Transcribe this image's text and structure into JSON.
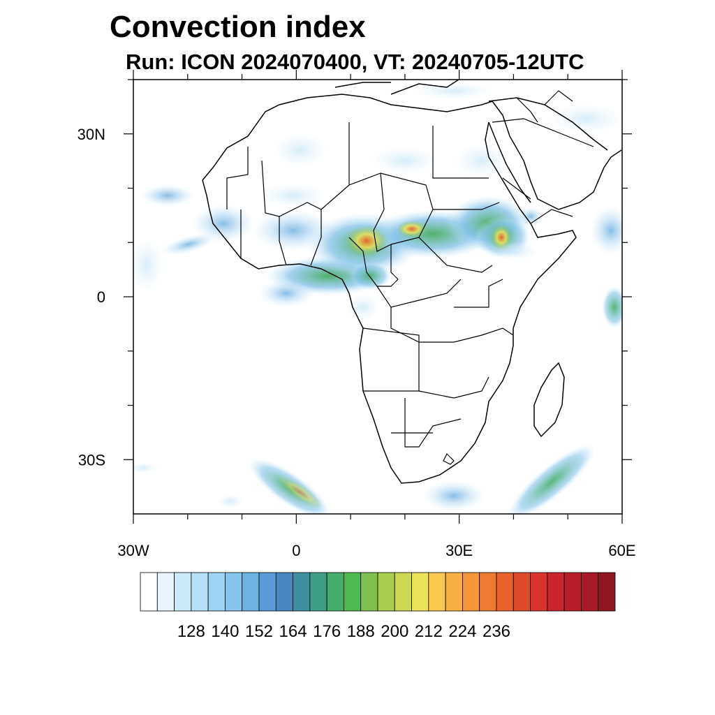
{
  "header": {
    "title": "Convection index",
    "subtitle": "Run: ICON 2024070400,  VT: 20240705-12UTC"
  },
  "map": {
    "lon_range": [
      -30,
      60
    ],
    "lat_range": [
      -40,
      40
    ],
    "lat_ticks": [
      {
        "value": 30,
        "label": "30N"
      },
      {
        "value": 0,
        "label": "0"
      },
      {
        "value": -30,
        "label": "30S"
      }
    ],
    "lon_ticks": [
      {
        "value": -30,
        "label": "30W"
      },
      {
        "value": 0,
        "label": "0"
      },
      {
        "value": 30,
        "label": "30E"
      },
      {
        "value": 60,
        "label": "60E"
      }
    ]
  },
  "colorbar": {
    "colors": [
      "#ffffff",
      "#e8f4fc",
      "#cde9f7",
      "#b6e0f5",
      "#9dd4f3",
      "#86c5ec",
      "#6eb1e3",
      "#5b9bd5",
      "#4a86c0",
      "#3e8fa0",
      "#3f9e84",
      "#43ad6a",
      "#4fb850",
      "#7fc04e",
      "#a7cc4e",
      "#cfd855",
      "#ede35a",
      "#f8ca52",
      "#f6b044",
      "#f3963a",
      "#ee7a32",
      "#e8612d",
      "#de4a2c",
      "#d6342c",
      "#c9252c",
      "#b81e2a",
      "#a51a26",
      "#901722"
    ],
    "labels": [
      "128",
      "140",
      "152",
      "164",
      "176",
      "188",
      "200",
      "212",
      "224",
      "236"
    ]
  },
  "legend_colors": {
    "coast": "#000000",
    "border": "#000000"
  }
}
